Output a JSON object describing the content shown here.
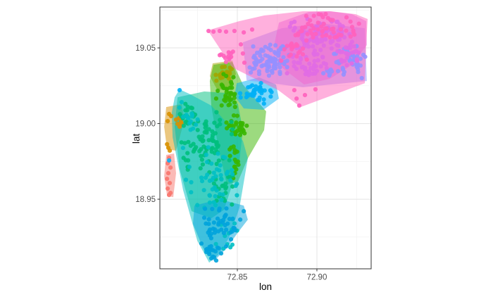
{
  "figure": {
    "background": "#FFFFFF"
  },
  "axes": {
    "x_title": "lon",
    "y_title": "lat"
  },
  "chart_data": {
    "type": "scatter",
    "title": "",
    "xlabel": "lon",
    "ylabel": "lat",
    "xlim": [
      72.8013,
      72.9341
    ],
    "ylim": [
      18.904,
      19.077
    ],
    "grid": true,
    "legend": "none",
    "x_ticks": [
      {
        "v": 72.85,
        "label": "72.85"
      },
      {
        "v": 72.9,
        "label": "72.90"
      }
    ],
    "y_ticks": [
      {
        "v": 19.05,
        "label": "19.05"
      },
      {
        "v": 19.0,
        "label": "19.00"
      },
      {
        "v": 18.95,
        "label": "18.95"
      }
    ],
    "x_minor_ticks": [
      72.825,
      72.875,
      72.925
    ],
    "y_minor_ticks": [
      19.075,
      19.025,
      18.975,
      18.925
    ],
    "panel": {
      "background": "#FFFFFF",
      "border_color": "#333333",
      "major_grid_color": "#E4E4E4",
      "minor_grid_color": "#F1F1F1",
      "tick_color": "#333333",
      "tick_label_color": "#4D4D4D"
    },
    "style": {
      "point_radius": 3.1,
      "point_opacity": 0.9,
      "hull_opacity": 0.5
    },
    "clusters": [
      {
        "id": "cluster-salmon",
        "color": "#F8766D",
        "hull": [
          [
            72.8053,
            18.9793
          ],
          [
            72.8102,
            18.9802
          ],
          [
            72.8115,
            18.9672
          ],
          [
            72.8097,
            18.9514
          ],
          [
            72.8058,
            18.9523
          ],
          [
            72.804,
            18.9653
          ]
        ],
        "points": [
          [
            72.8071,
            18.9774
          ],
          [
            72.8062,
            18.9737
          ],
          [
            72.808,
            18.9709
          ],
          [
            72.8066,
            18.9672
          ],
          [
            72.8058,
            18.9635
          ],
          [
            72.8075,
            18.9607
          ],
          [
            72.8062,
            18.957
          ],
          [
            72.808,
            18.9542
          ],
          [
            72.8071,
            18.9528
          ]
        ],
        "blobs": []
      },
      {
        "id": "cluster-orange",
        "color": "#D89000",
        "hull": [
          [
            72.8053,
            19.0109
          ],
          [
            72.815,
            19.0128
          ],
          [
            72.8168,
            19.0026
          ],
          [
            72.8115,
            18.9821
          ],
          [
            72.8058,
            18.983
          ],
          [
            72.804,
            18.9979
          ]
        ],
        "points": [
          [
            72.8071,
            19.0063
          ],
          [
            72.8084,
            19.0049
          ],
          [
            72.8062,
            19.0016
          ],
          [
            72.8058,
            18.9863
          ],
          [
            72.8066,
            18.984
          ],
          [
            72.8075,
            18.9821
          ],
          [
            72.8133,
            19.0035
          ],
          [
            72.8146,
            19.0012
          ],
          [
            72.8124,
            18.9998
          ],
          [
            72.8137,
            18.9979
          ],
          [
            72.8115,
            19.0026
          ],
          [
            72.815,
            18.9998
          ]
        ],
        "blobs": []
      },
      {
        "id": "cluster-olive",
        "color": "#A3A500",
        "hull": [
          [
            72.8345,
            19.0398
          ],
          [
            72.8469,
            19.0416
          ],
          [
            72.8491,
            19.0328
          ],
          [
            72.8447,
            19.0221
          ],
          [
            72.8372,
            19.0226
          ],
          [
            72.8327,
            19.0314
          ]
        ],
        "points": [],
        "blobs": [
          {
            "lon": 72.8407,
            "lat": 19.0323,
            "rlon": 0.0066,
            "rlat": 0.0079,
            "n": 22,
            "seed": 31
          }
        ]
      },
      {
        "id": "cluster-green",
        "color": "#39B600",
        "hull": [
          [
            72.835,
            19.0388
          ],
          [
            72.8469,
            19.0407
          ],
          [
            72.8535,
            19.0258
          ],
          [
            72.8681,
            19.0081
          ],
          [
            72.8668,
            18.9956
          ],
          [
            72.8566,
            18.977
          ],
          [
            72.8504,
            18.9616
          ],
          [
            72.8434,
            18.9598
          ],
          [
            72.8381,
            18.984
          ],
          [
            72.8336,
            19.0119
          ],
          [
            72.8327,
            19.0281
          ]
        ],
        "points": [],
        "blobs": [
          {
            "lon": 72.8434,
            "lat": 19.0212,
            "rlon": 0.0088,
            "rlat": 0.014,
            "n": 35,
            "seed": 41
          },
          {
            "lon": 72.8496,
            "lat": 18.9988,
            "rlon": 0.0071,
            "rlat": 0.0121,
            "n": 30,
            "seed": 42
          },
          {
            "lon": 72.8482,
            "lat": 18.9747,
            "rlon": 0.004,
            "rlat": 0.0121,
            "n": 16,
            "seed": 43
          }
        ]
      },
      {
        "id": "cluster-springgreen",
        "color": "#00BF7D",
        "hull": [
          [
            72.8124,
            19.0174
          ],
          [
            72.8292,
            19.0212
          ],
          [
            72.8434,
            19.0202
          ],
          [
            72.8504,
            19.0128
          ],
          [
            72.8535,
            18.9956
          ],
          [
            72.8513,
            18.9756
          ],
          [
            72.8469,
            18.9598
          ],
          [
            72.8416,
            18.943
          ],
          [
            72.8336,
            18.9374
          ],
          [
            72.8212,
            18.9421
          ],
          [
            72.8137,
            18.97
          ],
          [
            72.8106,
            18.9979
          ]
        ],
        "points": [],
        "blobs": [
          {
            "lon": 72.8314,
            "lat": 18.9886,
            "rlon": 0.0177,
            "rlat": 0.0256,
            "n": 85,
            "seed": 51
          },
          {
            "lon": 72.8416,
            "lat": 18.957,
            "rlon": 0.008,
            "rlat": 0.013,
            "n": 22,
            "seed": 52
          },
          {
            "lon": 72.8181,
            "lat": 19.0049,
            "rlon": 0.0062,
            "rlat": 0.0093,
            "n": 14,
            "seed": 53
          }
        ]
      },
      {
        "id": "cluster-cyan",
        "color": "#00BFC4",
        "hull": [
          [
            72.8137,
            19.0226
          ],
          [
            72.8195,
            19.0198
          ],
          [
            72.8336,
            19.0119
          ],
          [
            72.8535,
            18.9886
          ],
          [
            72.8566,
            18.977
          ],
          [
            72.8513,
            18.9444
          ],
          [
            72.8447,
            18.9244
          ],
          [
            72.8381,
            18.9133
          ],
          [
            72.8323,
            18.9081
          ],
          [
            72.8248,
            18.9226
          ],
          [
            72.8159,
            18.956
          ],
          [
            72.8093,
            18.9909
          ],
          [
            72.8088,
            19.0072
          ],
          [
            72.8106,
            19.0174
          ]
        ],
        "points": [],
        "blobs": [
          {
            "lon": 72.8327,
            "lat": 18.963,
            "rlon": 0.0199,
            "rlat": 0.0279,
            "n": 50,
            "seed": 61
          },
          {
            "lon": 72.8204,
            "lat": 19.0049,
            "rlon": 0.008,
            "rlat": 0.0116,
            "n": 15,
            "seed": 62
          },
          {
            "lon": 72.8425,
            "lat": 18.9281,
            "rlon": 0.0088,
            "rlat": 0.0116,
            "n": 12,
            "seed": 63
          }
        ]
      },
      {
        "id": "cluster-azure",
        "color": "#00B0F6",
        "hull": [
          [
            72.8496,
            19.0267
          ],
          [
            72.8637,
            19.0305
          ],
          [
            72.8743,
            19.0258
          ],
          [
            72.8761,
            19.0165
          ],
          [
            72.8664,
            19.0091
          ],
          [
            72.854,
            19.01
          ],
          [
            72.8482,
            19.0184
          ]
        ],
        "points": [
          [
            72.8137,
            19.0221
          ],
          [
            72.8071,
            18.9756
          ]
        ],
        "blobs": [
          {
            "lon": 72.8624,
            "lat": 19.0202,
            "rlon": 0.0115,
            "rlat": 0.0079,
            "n": 40,
            "seed": 71
          }
        ]
      },
      {
        "id": "cluster-blue",
        "color": "#00A3DC",
        "hull": [
          [
            72.823,
            18.9458
          ],
          [
            72.8389,
            18.95
          ],
          [
            72.854,
            18.9458
          ],
          [
            72.8566,
            18.9365
          ],
          [
            72.8504,
            18.9281
          ],
          [
            72.8434,
            18.9179
          ],
          [
            72.8354,
            18.9091
          ],
          [
            72.8283,
            18.9179
          ],
          [
            72.8221,
            18.9337
          ]
        ],
        "points": [
          [
            72.8274,
            18.9207
          ],
          [
            72.8305,
            18.9151
          ],
          [
            72.8336,
            18.9109
          ],
          [
            72.8367,
            18.9095
          ],
          [
            72.8398,
            18.9142
          ],
          [
            72.8429,
            18.9188
          ],
          [
            72.846,
            18.9235
          ],
          [
            72.8487,
            18.9295
          ],
          [
            72.8518,
            18.9365
          ],
          [
            72.854,
            18.9421
          ]
        ],
        "blobs": [
          {
            "lon": 72.8403,
            "lat": 18.9337,
            "rlon": 0.0133,
            "rlat": 0.0121,
            "n": 40,
            "seed": 81
          },
          {
            "lon": 72.8336,
            "lat": 18.9165,
            "rlon": 0.008,
            "rlat": 0.0065,
            "n": 14,
            "seed": 82
          }
        ]
      },
      {
        "id": "cluster-periwinkle",
        "color": "#9590FF",
        "hull": [
          [
            72.8535,
            19.0537
          ],
          [
            72.8779,
            19.063
          ],
          [
            72.9022,
            19.0663
          ],
          [
            72.9301,
            19.063
          ],
          [
            72.9314,
            19.0281
          ],
          [
            72.8912,
            19.024
          ],
          [
            72.8558,
            19.0286
          ]
        ],
        "points": [],
        "blobs": [
          {
            "lon": 72.869,
            "lat": 19.0421,
            "rlon": 0.015,
            "rlat": 0.013,
            "n": 85,
            "seed": 91
          },
          {
            "lon": 72.9199,
            "lat": 19.0407,
            "rlon": 0.0111,
            "rlat": 0.0112,
            "n": 40,
            "seed": 92
          },
          {
            "lon": 72.908,
            "lat": 19.0328,
            "rlon": 0.0053,
            "rlat": 0.0056,
            "n": 8,
            "seed": 93
          }
        ]
      },
      {
        "id": "cluster-orchid",
        "color": "#E16BE4",
        "hull": [
          [
            72.8761,
            19.0667
          ],
          [
            72.8947,
            19.0737
          ],
          [
            72.908,
            19.0742
          ],
          [
            72.9221,
            19.0723
          ],
          [
            72.931,
            19.0677
          ],
          [
            72.9314,
            19.0519
          ],
          [
            72.9221,
            19.0388
          ],
          [
            72.908,
            19.0295
          ],
          [
            72.892,
            19.0258
          ],
          [
            72.8779,
            19.037
          ],
          [
            72.8735,
            19.0537
          ]
        ],
        "points": [],
        "blobs": [
          {
            "lon": 72.9022,
            "lat": 19.0593,
            "rlon": 0.0243,
            "rlat": 0.0121,
            "n": 95,
            "seed": 101
          },
          {
            "lon": 72.8947,
            "lat": 19.0388,
            "rlon": 0.0142,
            "rlat": 0.0102,
            "n": 40,
            "seed": 102
          },
          {
            "lon": 72.9199,
            "lat": 19.0467,
            "rlon": 0.0097,
            "rlat": 0.0093,
            "n": 25,
            "seed": 103
          }
        ]
      },
      {
        "id": "cluster-pink",
        "color": "#FF62BC",
        "hull": [
          [
            72.8314,
            19.0616
          ],
          [
            72.8513,
            19.0677
          ],
          [
            72.8668,
            19.0714
          ],
          [
            72.8912,
            19.0742
          ],
          [
            72.9088,
            19.0742
          ],
          [
            72.9243,
            19.0723
          ],
          [
            72.9319,
            19.0691
          ],
          [
            72.931,
            19.0537
          ],
          [
            72.9301,
            19.0267
          ],
          [
            72.8898,
            19.0109
          ],
          [
            72.8757,
            19.0221
          ],
          [
            72.8469,
            19.037
          ]
        ],
        "points": [
          [
            72.8319,
            19.0612
          ],
          [
            72.835,
            19.0607
          ],
          [
            72.8389,
            19.0612
          ],
          [
            72.8429,
            19.0607
          ],
          [
            72.8482,
            19.0612
          ],
          [
            72.854,
            19.0602
          ],
          [
            72.8593,
            19.0621
          ],
          [
            72.8858,
            19.0221
          ],
          [
            72.8872,
            19.0165
          ],
          [
            72.8889,
            19.0119
          ],
          [
            72.8925,
            19.0188
          ],
          [
            72.8991,
            19.0226
          ],
          [
            72.8522,
            19.0523
          ],
          [
            72.8535,
            19.0463
          ],
          [
            72.8544,
            19.0402
          ]
        ],
        "blobs": [
          {
            "lon": 72.9053,
            "lat": 19.063,
            "rlon": 0.023,
            "rlat": 0.0102,
            "n": 55,
            "seed": 111
          },
          {
            "lon": 72.8858,
            "lat": 19.0491,
            "rlon": 0.0124,
            "rlat": 0.0116,
            "n": 20,
            "seed": 112
          },
          {
            "lon": 72.8425,
            "lat": 19.0444,
            "rlon": 0.0062,
            "rlat": 0.0056,
            "n": 12,
            "seed": 113
          }
        ]
      }
    ]
  }
}
